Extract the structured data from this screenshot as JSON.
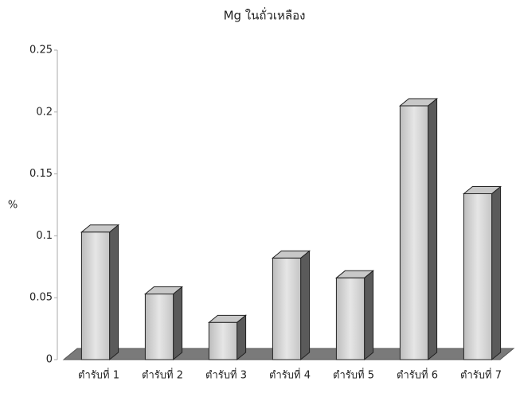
{
  "chart_data": {
    "type": "bar3d",
    "title": "Mg ในถั่วเหลือง",
    "y_label": "%",
    "categories": [
      "ตำรับที่ 1",
      "ตำรับที่ 2",
      "ตำรับที่ 3",
      "ตำรับที่ 4",
      "ตำรับที่ 5",
      "ตำรับที่ 6",
      "ตำรับที่ 7"
    ],
    "values": [
      0.103,
      0.053,
      0.03,
      0.082,
      0.066,
      0.205,
      0.134
    ],
    "color": "#d4d4d4",
    "ylim": [
      0,
      0.25
    ],
    "yticks": [
      0,
      0.05,
      0.1,
      0.15,
      0.2,
      0.25
    ],
    "grid": false
  }
}
